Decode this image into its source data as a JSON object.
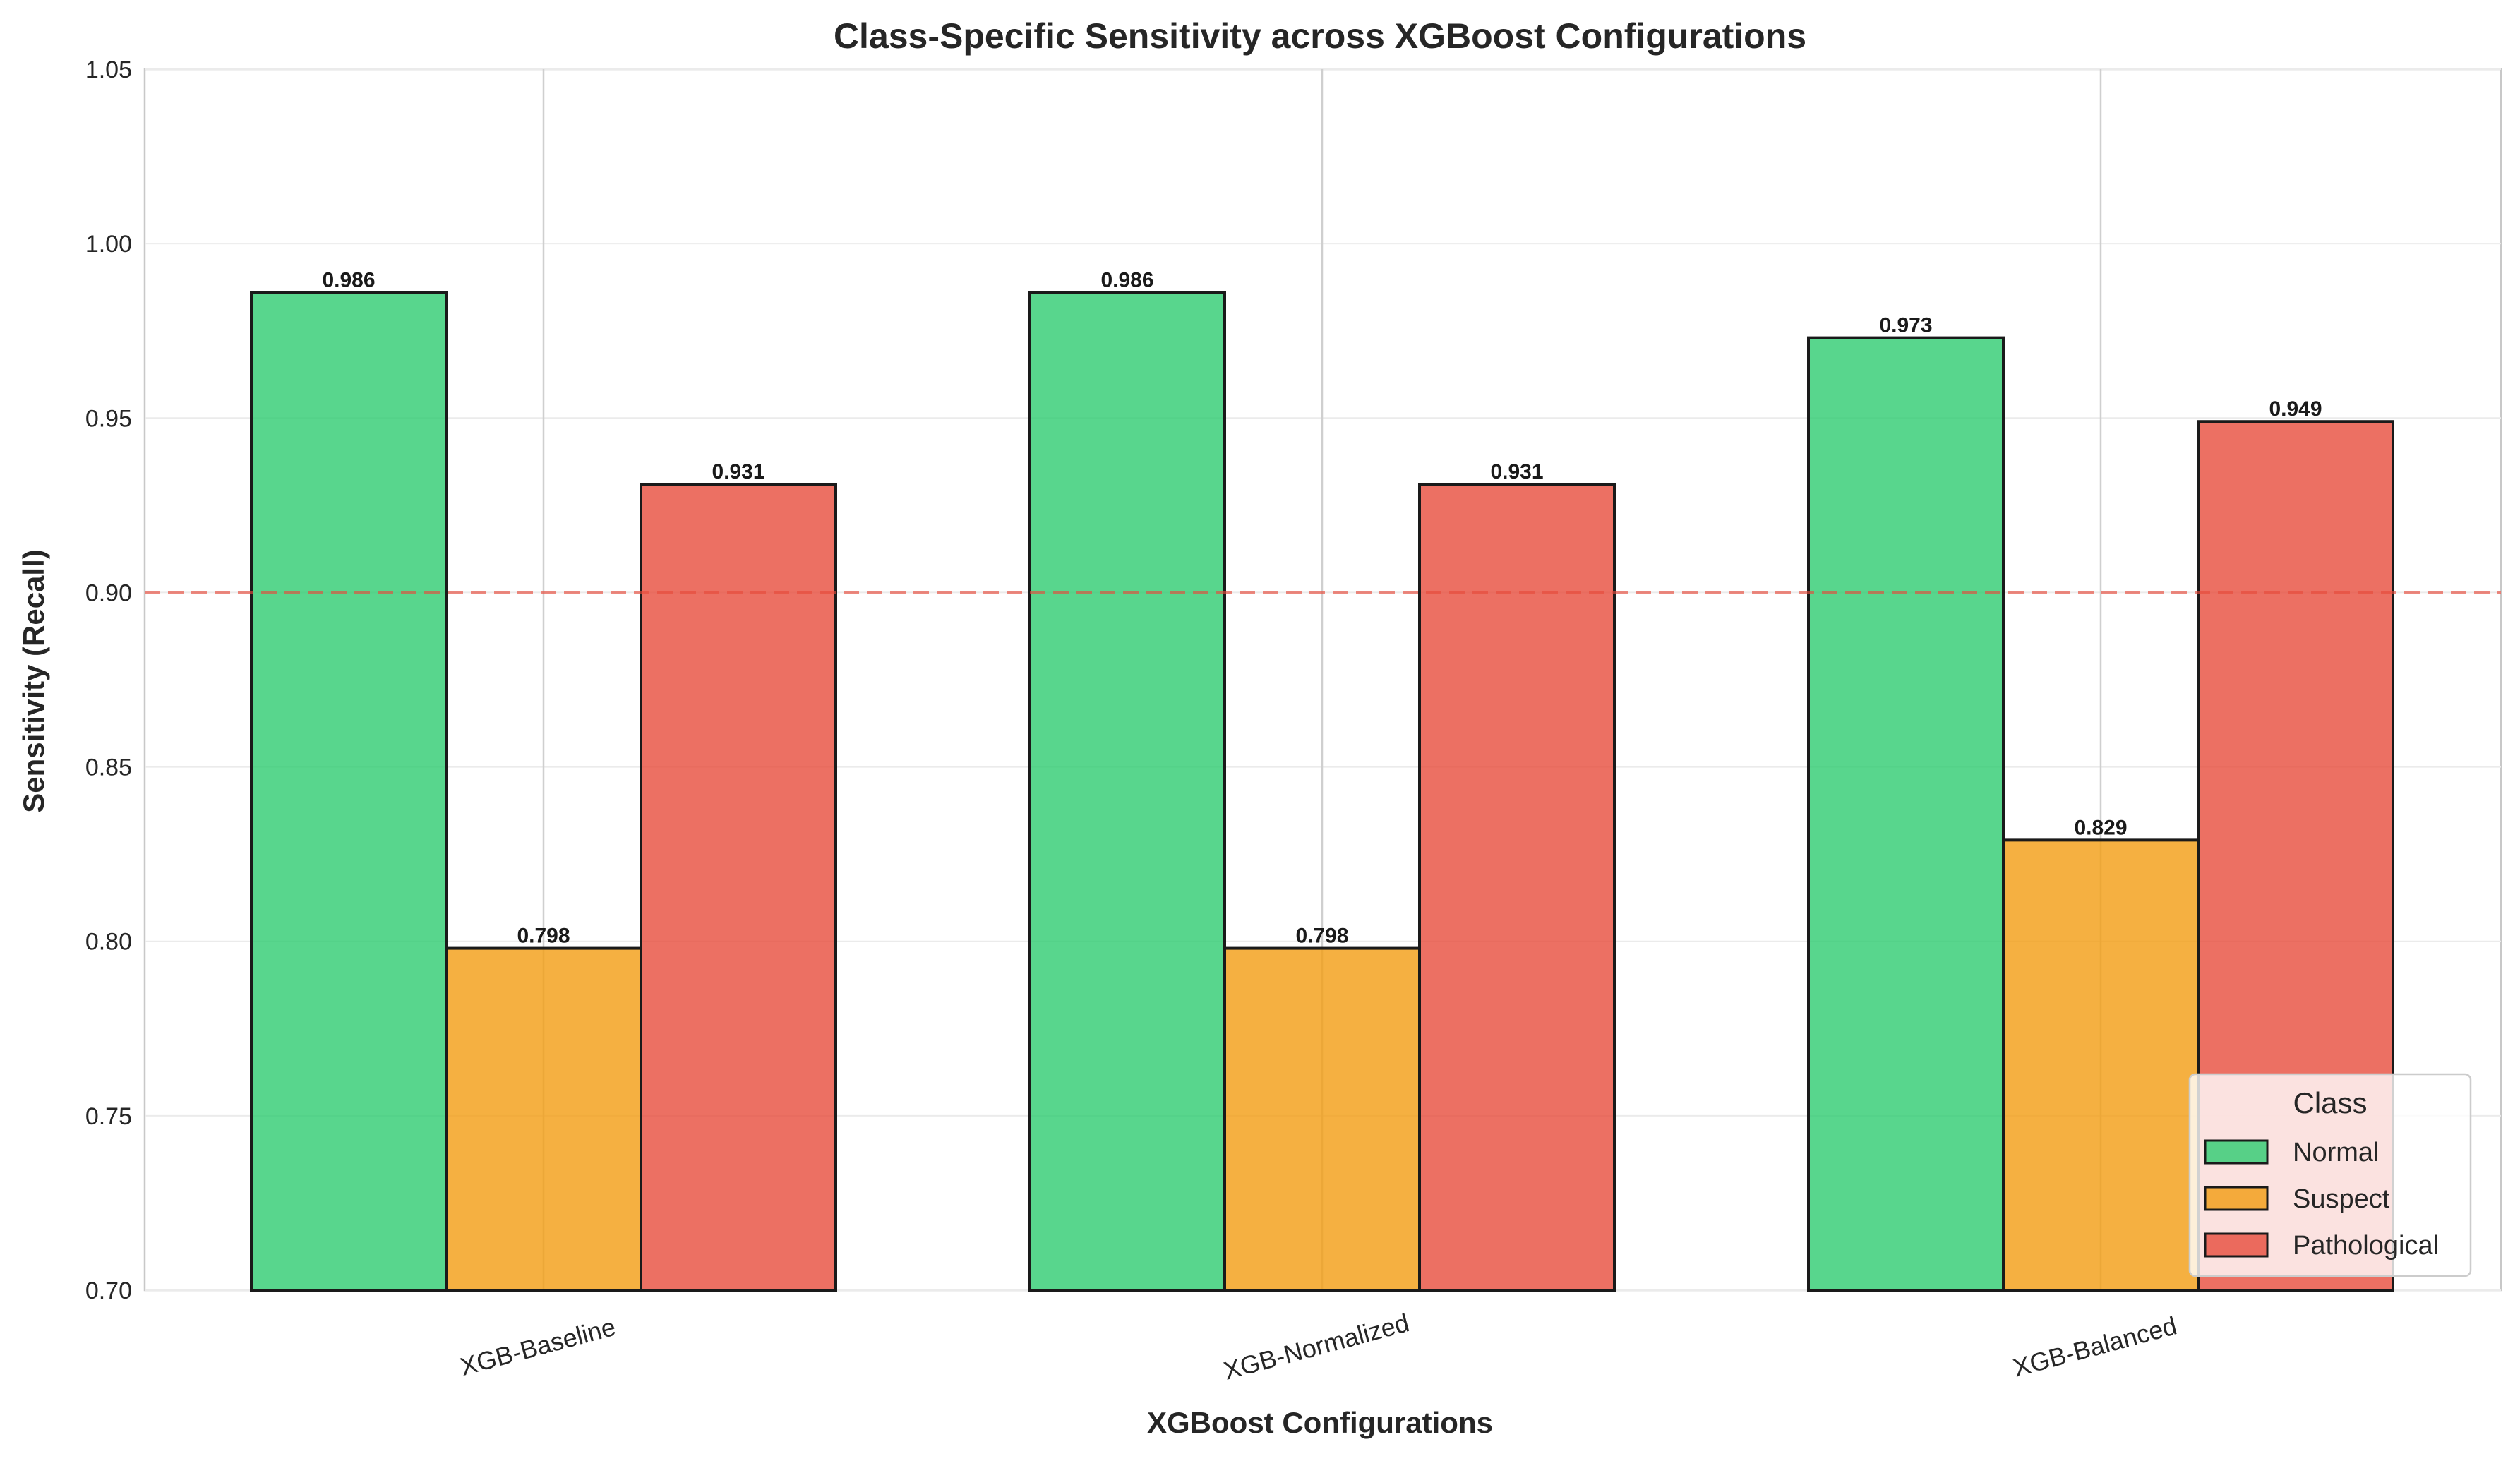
{
  "chart_data": {
    "type": "bar",
    "title": "Class-Specific Sensitivity across XGBoost Configurations",
    "xlabel": "XGBoost Configurations",
    "ylabel": "Sensitivity (Recall)",
    "categories": [
      "XGB-Baseline",
      "XGB-Normalized",
      "XGB-Balanced"
    ],
    "series": [
      {
        "name": "Normal",
        "values": [
          0.986,
          0.986,
          0.973
        ],
        "color": "#2ecc71"
      },
      {
        "name": "Suspect",
        "values": [
          0.798,
          0.798,
          0.829
        ],
        "color": "#f39c12"
      },
      {
        "name": "Pathological",
        "values": [
          0.931,
          0.931,
          0.949
        ],
        "color": "#e74c3c"
      }
    ],
    "ylim": [
      0.7,
      1.05
    ],
    "yticks": [
      "0.70",
      "0.75",
      "0.80",
      "0.85",
      "0.90",
      "0.95",
      "1.00",
      "1.05"
    ],
    "reference_line": {
      "y": 0.9,
      "color": "#e74c3c",
      "style": "dashed"
    },
    "legend": {
      "title": "Class",
      "position": "lower-right"
    },
    "grid": true
  }
}
